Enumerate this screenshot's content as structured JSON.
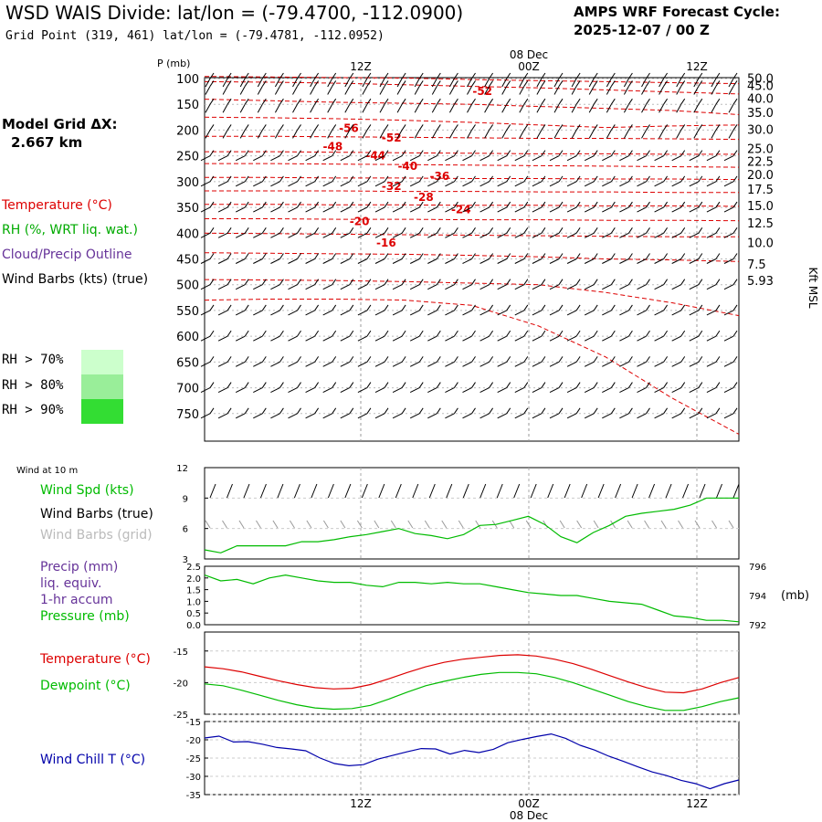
{
  "header": {
    "title": "WSD WAIS Divide:  lat/lon = (-79.4700, -112.0900)",
    "subtitle": "Grid Point (319, 461) lat/lon = (-79.4781, -112.0952)",
    "cycle_line1": "AMPS WRF Forecast Cycle:",
    "cycle_line2": "2025-12-07 / 00  Z"
  },
  "left_panel": {
    "model_grid_line1": "Model Grid ΔX:",
    "model_grid_line2": "2.667 km",
    "legend_temperature": "Temperature (°C)",
    "legend_rh": "RH (%, WRT liq. wat.)",
    "legend_cloud": "Cloud/Precip Outline",
    "legend_wind": "Wind Barbs (kts) (true)",
    "rh_70": "RH > 70%",
    "rh_80": "RH > 80%",
    "rh_90": "RH > 90%"
  },
  "colors": {
    "temperature": "#dd0000",
    "rh": "#00aa00",
    "cloud": "#663399",
    "wind_grid": "#aaaaaa",
    "wind_chill": "#0000aa",
    "rh70": "#ccffcc",
    "rh80": "#99ee99",
    "rh90": "#33dd33"
  },
  "chart_data": [
    {
      "type": "line",
      "panel": "vertical-profile",
      "xlabel_top": [
        "12Z",
        "08 Dec",
        "00Z",
        "12Z"
      ],
      "x_ticks": [
        "12Z",
        "00Z",
        "12Z"
      ],
      "date_label": "08 Dec",
      "ylabel": "P (mb)",
      "y_ticks": [
        100,
        150,
        200,
        250,
        300,
        350,
        400,
        450,
        500,
        550,
        600,
        650,
        700,
        750
      ],
      "ylim": [
        800,
        100
      ],
      "right_axis_label": "Kft MSL",
      "right_ticks": [
        {
          "p": 99,
          "label": "50.0"
        },
        {
          "p": 113,
          "label": "45.0"
        },
        {
          "p": 138,
          "label": "40.0"
        },
        {
          "p": 166,
          "label": "35.0"
        },
        {
          "p": 198,
          "label": "30.0"
        },
        {
          "p": 236,
          "label": "25.0"
        },
        {
          "p": 260,
          "label": "22.5"
        },
        {
          "p": 286,
          "label": "20.0"
        },
        {
          "p": 314,
          "label": "17.5"
        },
        {
          "p": 346,
          "label": "15.0"
        },
        {
          "p": 380,
          "label": "12.5"
        },
        {
          "p": 418,
          "label": "10.0"
        },
        {
          "p": 460,
          "label": "7.5"
        },
        {
          "p": 492,
          "label": "5.93"
        }
      ],
      "temperature_contours": [
        {
          "label": "-52",
          "t": 0.52,
          "p": 125
        },
        {
          "label": "-56",
          "t": 0.27,
          "p": 197
        },
        {
          "label": "-52",
          "t": 0.35,
          "p": 215
        },
        {
          "label": "-48",
          "t": 0.24,
          "p": 232
        },
        {
          "label": "-44",
          "t": 0.32,
          "p": 250
        },
        {
          "label": "-40",
          "t": 0.38,
          "p": 270
        },
        {
          "label": "-36",
          "t": 0.44,
          "p": 290
        },
        {
          "label": "-32",
          "t": 0.35,
          "p": 309
        },
        {
          "label": "-28",
          "t": 0.41,
          "p": 330
        },
        {
          "label": "-24",
          "t": 0.48,
          "p": 354
        },
        {
          "label": "-20",
          "t": 0.29,
          "p": 377
        },
        {
          "label": "-16",
          "t": 0.34,
          "p": 419
        }
      ]
    },
    {
      "type": "line",
      "panel": "wind",
      "title": "Wind at 10 m",
      "series_labels": [
        "Wind Spd (kts)",
        "Wind Barbs (true)",
        "Wind Barbs (grid)"
      ],
      "y_ticks": [
        3,
        6,
        9,
        12
      ],
      "ylim": [
        3,
        12
      ],
      "series": [
        {
          "name": "Wind Spd (kts)",
          "color": "#00bb00",
          "values": [
            3.9,
            3.6,
            4.3,
            4.3,
            4.3,
            4.3,
            4.7,
            4.7,
            4.9,
            5.2,
            5.4,
            5.7,
            6.0,
            5.5,
            5.3,
            5.0,
            5.4,
            6.3,
            6.4,
            6.8,
            7.2,
            6.4,
            5.2,
            4.6,
            5.6,
            6.3,
            7.2,
            7.5,
            7.7,
            7.9,
            8.3,
            9.0,
            9.0,
            9.0
          ]
        }
      ]
    },
    {
      "type": "line",
      "panel": "precip-pressure",
      "series_labels": [
        "Precip (mm)",
        "liq. equiv.",
        "1-hr accum",
        "Pressure (mb)"
      ],
      "y_ticks_left": [
        "0.0",
        "0.5",
        "1.0",
        "1.5",
        "2.0",
        "2.5"
      ],
      "ylim_left": [
        0,
        2.5
      ],
      "y_ticks_right": [
        792,
        794,
        796
      ],
      "ylim_right": [
        792,
        796
      ],
      "right_unit": "(mb)",
      "series": [
        {
          "name": "Pressure (mb)",
          "color": "#00bb00",
          "values": [
            795.4,
            795.0,
            795.1,
            794.8,
            795.2,
            795.4,
            795.2,
            795.0,
            794.9,
            794.9,
            794.7,
            794.6,
            794.9,
            794.9,
            794.8,
            794.9,
            794.8,
            794.8,
            794.6,
            794.4,
            794.2,
            794.1,
            794.0,
            794.0,
            793.8,
            793.6,
            793.5,
            793.4,
            793.0,
            792.6,
            792.5,
            792.3,
            792.3,
            792.2
          ]
        }
      ]
    },
    {
      "type": "line",
      "panel": "temperature-dewpoint",
      "series_labels": [
        "Temperature (°C)",
        "Dewpoint (°C)"
      ],
      "y_ticks": [
        -25,
        -20,
        -15
      ],
      "ylim": [
        -25,
        -12
      ],
      "series": [
        {
          "name": "Temperature (°C)",
          "color": "#dd0000",
          "values": [
            -17.5,
            -17.8,
            -18.3,
            -19.0,
            -19.7,
            -20.3,
            -20.8,
            -21.0,
            -20.9,
            -20.3,
            -19.4,
            -18.4,
            -17.5,
            -16.8,
            -16.3,
            -16.0,
            -15.7,
            -15.6,
            -15.8,
            -16.3,
            -17.0,
            -17.9,
            -18.9,
            -19.9,
            -20.8,
            -21.5,
            -21.6,
            -21.0,
            -20.0,
            -19.2
          ]
        },
        {
          "name": "Dewpoint (°C)",
          "color": "#00bb00",
          "values": [
            -20.2,
            -20.5,
            -21.2,
            -22.0,
            -22.8,
            -23.5,
            -24.0,
            -24.2,
            -24.1,
            -23.6,
            -22.6,
            -21.5,
            -20.5,
            -19.8,
            -19.2,
            -18.7,
            -18.4,
            -18.4,
            -18.6,
            -19.2,
            -20.0,
            -21.0,
            -22.0,
            -23.0,
            -23.8,
            -24.4,
            -24.4,
            -23.8,
            -23.0,
            -22.4
          ]
        }
      ]
    },
    {
      "type": "line",
      "panel": "wind-chill",
      "series_labels": [
        "Wind Chill T (°C)"
      ],
      "x_ticks": [
        "12Z",
        "00Z",
        "12Z"
      ],
      "date_label": "08 Dec",
      "y_ticks": [
        -35,
        -30,
        -25,
        -20,
        -15
      ],
      "ylim": [
        -35,
        -15
      ],
      "series": [
        {
          "name": "Wind Chill T (°C)",
          "color": "#0000aa",
          "values": [
            -19.5,
            -19.0,
            -20.6,
            -20.5,
            -21.2,
            -22.1,
            -22.5,
            -23.0,
            -25.0,
            -26.5,
            -27.1,
            -26.8,
            -25.3,
            -24.3,
            -23.3,
            -22.4,
            -22.5,
            -23.9,
            -22.9,
            -23.5,
            -22.6,
            -20.8,
            -19.9,
            -19.1,
            -18.4,
            -19.6,
            -21.5,
            -22.8,
            -24.5,
            -25.9,
            -27.4,
            -28.8,
            -29.8,
            -31.1,
            -32.0,
            -33.4,
            -32.0,
            -31.0
          ]
        }
      ]
    }
  ],
  "footer": {
    "date_label": "08 Dec"
  }
}
